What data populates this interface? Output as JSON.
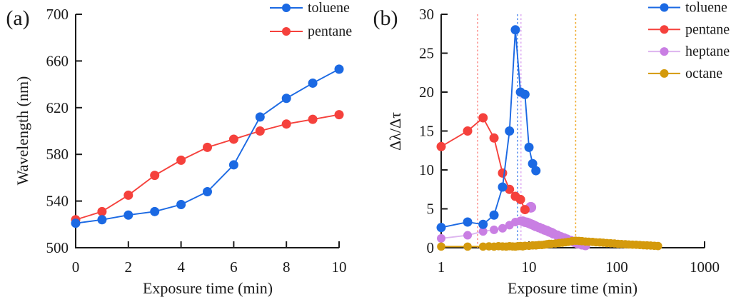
{
  "figure_type": "two-panel scientific line chart",
  "chart_data": [
    {
      "id": "a",
      "type": "line",
      "panel_label": "(a)",
      "xlabel": "Exposure time (min)",
      "ylabel": "Wavelength (nm)",
      "xscale": "linear",
      "xlim": [
        0,
        10
      ],
      "xticks": [
        0,
        2,
        4,
        6,
        8,
        10
      ],
      "ylim": [
        500,
        700
      ],
      "yticks": [
        500,
        540,
        580,
        620,
        660,
        700
      ],
      "grid": false,
      "legend_position": "top-right",
      "legend_entries": [
        {
          "label": "toluene",
          "line_color": "#1b69e3",
          "marker_color": "#1b69e3"
        },
        {
          "label": "pentane",
          "line_color": "#f5413c",
          "marker_color": "#f5413c"
        }
      ],
      "series": [
        {
          "name": "pentane",
          "line_color": "#f5413c",
          "marker_color": "#f5413c",
          "x": [
            0,
            1,
            2,
            3,
            4,
            5,
            6,
            7,
            8,
            9,
            10
          ],
          "y": [
            524,
            531,
            545,
            562,
            575,
            586,
            593,
            600,
            606,
            610,
            614
          ]
        },
        {
          "name": "toluene",
          "line_color": "#1b69e3",
          "marker_color": "#1b69e3",
          "x": [
            0,
            1,
            2,
            3,
            4,
            5,
            6,
            7,
            8,
            9,
            10
          ],
          "y": [
            521,
            524,
            528,
            531,
            537,
            548,
            571,
            612,
            628,
            641,
            653
          ]
        }
      ]
    },
    {
      "id": "b",
      "type": "line",
      "panel_label": "(b)",
      "xlabel": "Exposure time (min)",
      "ylabel": "Δλ/Δτ",
      "xscale": "log",
      "xlim": [
        1,
        1000
      ],
      "xticks": [
        1,
        10,
        100,
        1000
      ],
      "ylim": [
        0,
        30
      ],
      "yticks": [
        0,
        5,
        10,
        15,
        20,
        25,
        30
      ],
      "grid": false,
      "legend_position": "top-right",
      "vlines": [
        {
          "series": "pentane",
          "x": 2.6,
          "color": "#fb928f"
        },
        {
          "series": "toluene",
          "x": 7.4,
          "color": "#5b92ee"
        },
        {
          "series": "heptane",
          "x": 8.1,
          "color": "#dfaef2"
        },
        {
          "series": "octane",
          "x": 34,
          "color": "#f0ad33"
        }
      ],
      "legend_entries": [
        {
          "label": "toluene",
          "line_color": "#1b69e3",
          "marker_color": "#1b69e3"
        },
        {
          "label": "pentane",
          "line_color": "#f5413c",
          "marker_color": "#f5413c"
        },
        {
          "label": "heptane",
          "line_color": "#ddb5ef",
          "marker_color": "#c97fe3"
        },
        {
          "label": "octane",
          "line_color": "#d49a0c",
          "marker_color": "#d49a0c"
        }
      ],
      "series": [
        {
          "name": "heptane",
          "line_color": "#ddb5ef",
          "marker_color": "#c97fe3",
          "x": [
            1,
            2,
            3,
            4,
            5,
            6,
            7,
            8
          ],
          "y": [
            1.2,
            1.6,
            2.1,
            2.3,
            2.5,
            2.9,
            3.3,
            3.45
          ]
        },
        {
          "name": "heptane-tail",
          "line_color": "none",
          "marker_color": "#c97fe3",
          "x": [
            8.5,
            9,
            9.5,
            10,
            10.5,
            11,
            11.5,
            12,
            13,
            14,
            15,
            16,
            17,
            18,
            19,
            21,
            23,
            25,
            27,
            30,
            33,
            36,
            40,
            44
          ],
          "y": [
            3.4,
            3.3,
            3.25,
            3.15,
            3.05,
            2.95,
            2.85,
            2.75,
            2.6,
            2.45,
            2.3,
            2.2,
            2.05,
            1.95,
            1.8,
            1.6,
            1.4,
            1.25,
            1.1,
            0.9,
            0.7,
            0.55,
            0.4,
            0.3
          ]
        },
        {
          "name": "octane",
          "line_color": "#d49a0c",
          "marker_color": "#d49a0c",
          "x": [
            1,
            2,
            3,
            3.5,
            4,
            4.5,
            5,
            5.5,
            6,
            6.5,
            7,
            7.5,
            8,
            8.5,
            9,
            10,
            11,
            12,
            13,
            14,
            15,
            16,
            17,
            18,
            20,
            22,
            24,
            26,
            28,
            31,
            34,
            37,
            40,
            44,
            48,
            53,
            58,
            64,
            70,
            77,
            85,
            94,
            103,
            113,
            125,
            137,
            151,
            166,
            183,
            201,
            221,
            243,
            268,
            295
          ],
          "y": [
            0.15,
            0.15,
            0.15,
            0.18,
            0.15,
            0.2,
            0.17,
            0.15,
            0.2,
            0.17,
            0.15,
            0.2,
            0.22,
            0.18,
            0.25,
            0.25,
            0.3,
            0.3,
            0.35,
            0.35,
            0.4,
            0.45,
            0.5,
            0.5,
            0.55,
            0.6,
            0.65,
            0.7,
            0.75,
            0.85,
            0.9,
            0.88,
            0.85,
            0.8,
            0.78,
            0.75,
            0.7,
            0.68,
            0.65,
            0.6,
            0.58,
            0.55,
            0.5,
            0.48,
            0.45,
            0.42,
            0.4,
            0.38,
            0.35,
            0.32,
            0.3,
            0.28,
            0.25,
            0.22
          ]
        },
        {
          "name": "heptane-outlier",
          "line_color": "none",
          "marker_color": "#c97fe3",
          "x": [
            10.5
          ],
          "y": [
            5.2
          ]
        },
        {
          "name": "pentane",
          "line_color": "#f5413c",
          "marker_color": "#f5413c",
          "x": [
            1,
            2,
            3,
            4,
            5,
            6,
            7,
            8,
            9
          ],
          "y": [
            13.0,
            15.0,
            16.7,
            14.1,
            9.6,
            7.5,
            6.6,
            6.2,
            4.9
          ]
        },
        {
          "name": "toluene",
          "line_color": "#1b69e3",
          "marker_color": "#1b69e3",
          "x": [
            1,
            2,
            3,
            4,
            5,
            6,
            7,
            8,
            9,
            10,
            11,
            12
          ],
          "y": [
            2.6,
            3.3,
            3.0,
            4.2,
            7.8,
            15.0,
            28.0,
            20.0,
            19.7,
            12.9,
            10.8,
            9.9
          ]
        }
      ]
    }
  ]
}
